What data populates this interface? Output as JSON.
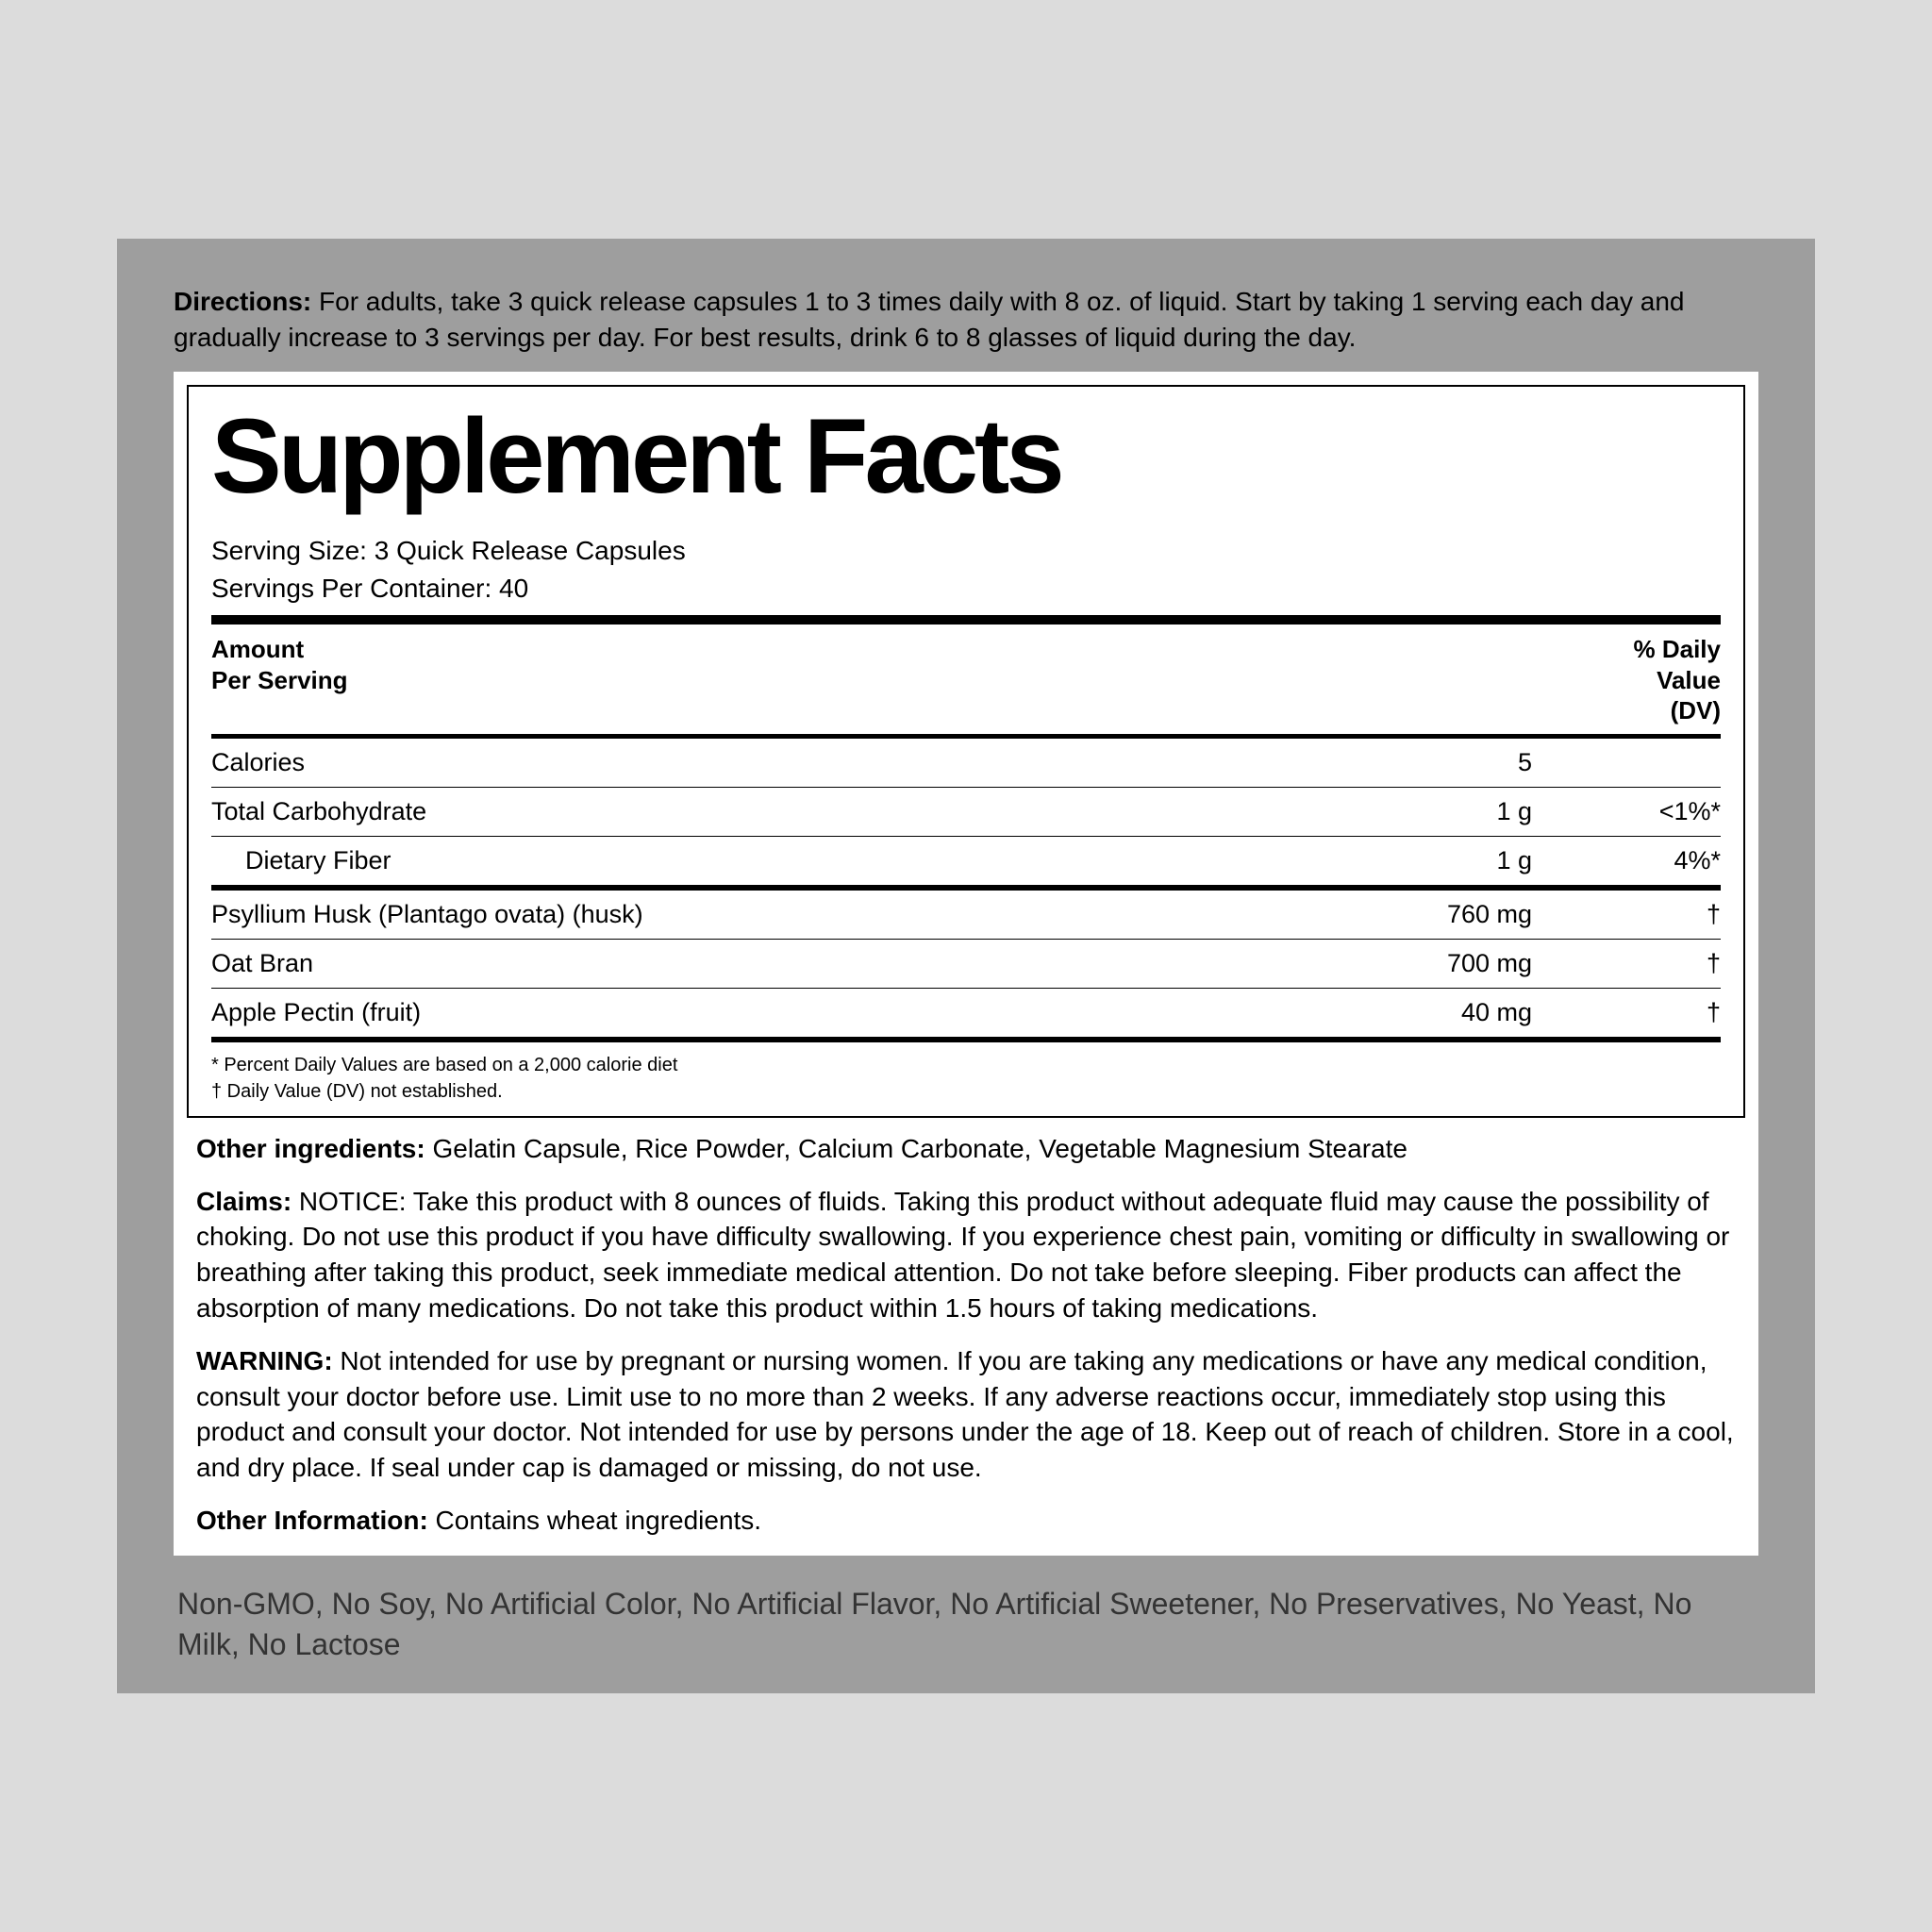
{
  "directions": {
    "label": "Directions:",
    "text": " For adults, take 3 quick release capsules 1 to 3 times daily with 8 oz. of liquid. Start by taking 1 serving each day and gradually increase to 3 servings per day. For best results, drink 6 to 8 glasses of liquid during the day."
  },
  "facts": {
    "title": "Supplement Facts",
    "serving_size_label": "Serving Size: ",
    "serving_size": "3 Quick Release Capsules",
    "servings_per_label": "Servings Per Container: ",
    "servings_per": "40",
    "header_left_l1": "Amount",
    "header_left_l2": "Per Serving",
    "header_right_l1": "% Daily",
    "header_right_l2": "Value",
    "header_right_l3": "(DV)",
    "rows": [
      {
        "name": "Calories",
        "amount": "5",
        "dv": "",
        "indent": false,
        "border": "thin"
      },
      {
        "name": "Total Carbohydrate",
        "amount": "1 g",
        "dv": "<1%*",
        "indent": false,
        "border": "thin"
      },
      {
        "name": "Dietary Fiber",
        "amount": "1 g",
        "dv": "4%*",
        "indent": true,
        "border": "mid"
      },
      {
        "name": "Psyllium Husk (Plantago ovata) (husk)",
        "amount": "760 mg",
        "dv": "†",
        "indent": false,
        "border": "thin"
      },
      {
        "name": "Oat Bran",
        "amount": "700 mg",
        "dv": "†",
        "indent": false,
        "border": "thin"
      },
      {
        "name": "Apple Pectin (fruit)",
        "amount": "40 mg",
        "dv": "†",
        "indent": false,
        "border": "mid"
      }
    ],
    "footnote1": "* Percent Daily Values are based on a 2,000 calorie diet",
    "footnote2": "† Daily Value (DV) not established."
  },
  "other_ingredients": {
    "label": "Other ingredients:",
    "text": " Gelatin Capsule, Rice Powder, Calcium Carbonate, Vegetable Magnesium Stearate"
  },
  "claims": {
    "label": "Claims:",
    "text": " NOTICE: Take this product with 8 ounces of fluids. Taking this product without adequate fluid may cause the possibility of choking. Do not use this product if you have difficulty swallowing. If you experience chest pain, vomiting or difficulty in swallowing or breathing after taking this product, seek immediate medical attention. Do not take before sleeping. Fiber products can affect the absorption of many medications. Do not take this product within 1.5 hours of taking medications."
  },
  "warning": {
    "label": "WARNING:",
    "text": " Not intended for use by pregnant or nursing women. If you are taking any medications or have any medical condition, consult your doctor before use. Limit use to no more than 2 weeks. If any adverse reactions occur, immediately stop using this product and consult your doctor. Not intended for use by persons under the age of 18. Keep out of reach of children. Store in a cool, and dry place. If seal under cap is damaged or missing, do not use."
  },
  "other_info": {
    "label": "Other Information:",
    "text": " Contains wheat ingredients."
  },
  "free_from": "Non-GMO, No Soy, No Artificial Color, No Artificial Flavor, No Artificial Sweetener, No Preservatives, No Yeast, No Milk, No Lactose"
}
